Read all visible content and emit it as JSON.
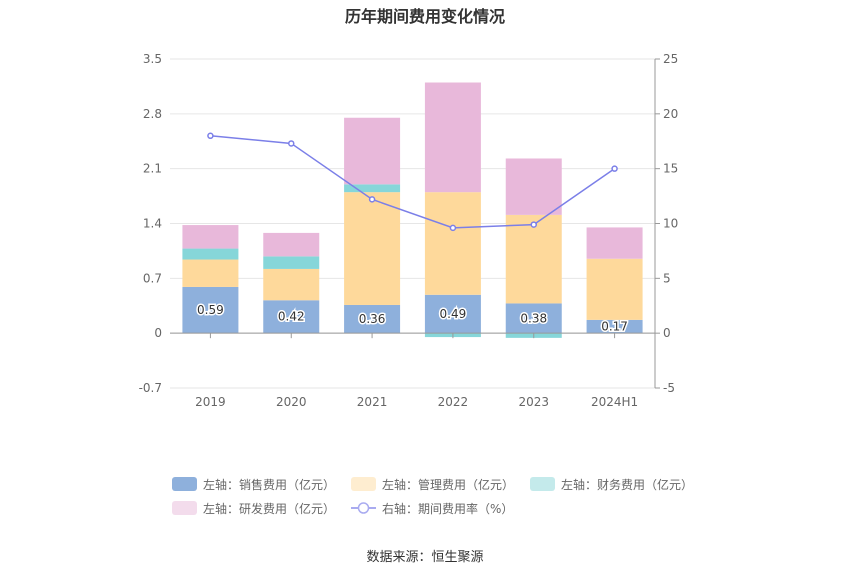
{
  "title": "历年期间费用变化情况",
  "source": "数据来源：恒生聚源",
  "chart_data": {
    "type": "bar",
    "stacked": true,
    "categories": [
      "2019",
      "2020",
      "2021",
      "2022",
      "2023",
      "2024H1"
    ],
    "y_left": {
      "min": -0.7,
      "max": 3.5,
      "ticks": [
        "3.5",
        "2.8",
        "2.1",
        "1.4",
        "0.7",
        "0",
        "-0.7"
      ]
    },
    "y_right": {
      "min": -5,
      "max": 25,
      "ticks": [
        "25",
        "20",
        "15",
        "10",
        "5",
        "0",
        "-5"
      ]
    },
    "series": [
      {
        "name": "左轴：销售费用（亿元）",
        "axis": "left",
        "color": "#8eb0dc",
        "values": [
          0.59,
          0.42,
          0.36,
          0.49,
          0.38,
          0.17
        ],
        "labels": [
          "0.59",
          "0.42",
          "0.36",
          "0.49",
          "0.38",
          "0.17"
        ]
      },
      {
        "name": "左轴：管理费用（亿元）",
        "axis": "left",
        "color": "#fed99b",
        "values": [
          0.35,
          0.4,
          1.44,
          1.31,
          1.13,
          0.78
        ]
      },
      {
        "name": "左轴：财务费用（亿元）",
        "axis": "left",
        "color": "#86d6d9",
        "values": [
          0.14,
          0.16,
          0.1,
          -0.05,
          -0.06,
          0.0
        ]
      },
      {
        "name": "左轴：研发费用（亿元）",
        "axis": "left",
        "color": "#e8b8da",
        "values": [
          0.3,
          0.3,
          0.85,
          1.4,
          0.72,
          0.4
        ]
      },
      {
        "name": "右轴：期间费用率（%）",
        "axis": "right",
        "type": "line",
        "color": "#7b7fe8",
        "values": [
          18.0,
          17.3,
          12.2,
          9.6,
          9.9,
          15.0
        ]
      }
    ],
    "grid": true,
    "legend_position": "bottom"
  }
}
